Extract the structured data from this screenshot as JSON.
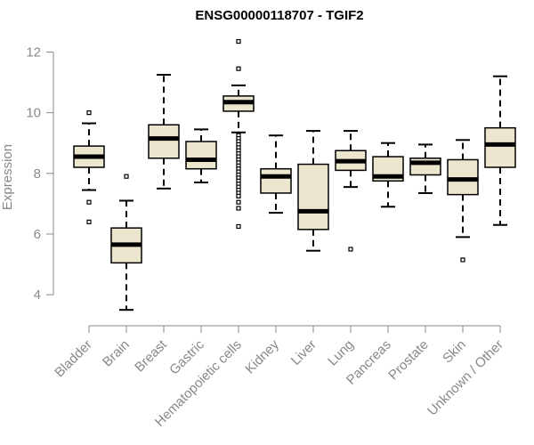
{
  "chart_data": {
    "type": "boxplot",
    "title": "ENSG00000118707 - TGIF2",
    "xlabel": "",
    "ylabel": "Expression",
    "ylim": [
      3.3,
      12.6
    ],
    "yticks": [
      4,
      6,
      8,
      10,
      12
    ],
    "grid": false,
    "legend": "none",
    "colors": {
      "box_fill": "#ede6cf",
      "stroke": "#000000",
      "axis": "#888888"
    },
    "categories": [
      "Bladder",
      "Brain",
      "Breast",
      "Gastric",
      "Hematopoietic cells",
      "Kidney",
      "Liver",
      "Lung",
      "Pancreas",
      "Prostate",
      "Skin",
      "Unknown / Other"
    ],
    "boxes": [
      {
        "category": "Bladder",
        "whisker_low": 7.45,
        "q1": 8.2,
        "median": 8.55,
        "q3": 8.9,
        "whisker_high": 9.65,
        "outliers": [
          10.0,
          7.05,
          6.4
        ]
      },
      {
        "category": "Brain",
        "whisker_low": 3.5,
        "q1": 5.05,
        "median": 5.65,
        "q3": 6.2,
        "whisker_high": 7.1,
        "outliers": [
          7.9
        ]
      },
      {
        "category": "Breast",
        "whisker_low": 7.5,
        "q1": 8.5,
        "median": 9.15,
        "q3": 9.6,
        "whisker_high": 11.25,
        "outliers": []
      },
      {
        "category": "Gastric",
        "whisker_low": 7.7,
        "q1": 8.15,
        "median": 8.45,
        "q3": 9.05,
        "whisker_high": 9.45,
        "outliers": []
      },
      {
        "category": "Hematopoietic cells",
        "whisker_low": 9.35,
        "q1": 10.05,
        "median": 10.35,
        "q3": 10.55,
        "whisker_high": 10.9,
        "outliers": [
          12.35,
          11.45,
          9.25,
          9.15,
          9.05,
          8.95,
          8.85,
          8.75,
          8.65,
          8.55,
          8.45,
          8.35,
          8.25,
          8.15,
          8.05,
          7.95,
          7.85,
          7.75,
          7.65,
          7.55,
          7.45,
          7.35,
          7.25,
          7.05,
          6.85,
          6.25
        ]
      },
      {
        "category": "Kidney",
        "whisker_low": 6.7,
        "q1": 7.35,
        "median": 7.9,
        "q3": 8.15,
        "whisker_high": 9.25,
        "outliers": []
      },
      {
        "category": "Liver",
        "whisker_low": 5.45,
        "q1": 6.15,
        "median": 6.75,
        "q3": 8.3,
        "whisker_high": 9.4,
        "outliers": []
      },
      {
        "category": "Lung",
        "whisker_low": 7.55,
        "q1": 8.1,
        "median": 8.4,
        "q3": 8.75,
        "whisker_high": 9.4,
        "outliers": [
          5.5
        ]
      },
      {
        "category": "Pancreas",
        "whisker_low": 6.9,
        "q1": 7.75,
        "median": 7.9,
        "q3": 8.55,
        "whisker_high": 9.0,
        "outliers": []
      },
      {
        "category": "Prostate",
        "whisker_low": 7.35,
        "q1": 7.95,
        "median": 8.35,
        "q3": 8.5,
        "whisker_high": 8.95,
        "outliers": []
      },
      {
        "category": "Skin",
        "whisker_low": 5.9,
        "q1": 7.3,
        "median": 7.8,
        "q3": 8.45,
        "whisker_high": 9.1,
        "outliers": [
          5.15
        ]
      },
      {
        "category": "Unknown / Other",
        "whisker_low": 6.3,
        "q1": 8.2,
        "median": 8.95,
        "q3": 9.5,
        "whisker_high": 11.2,
        "outliers": []
      }
    ]
  }
}
